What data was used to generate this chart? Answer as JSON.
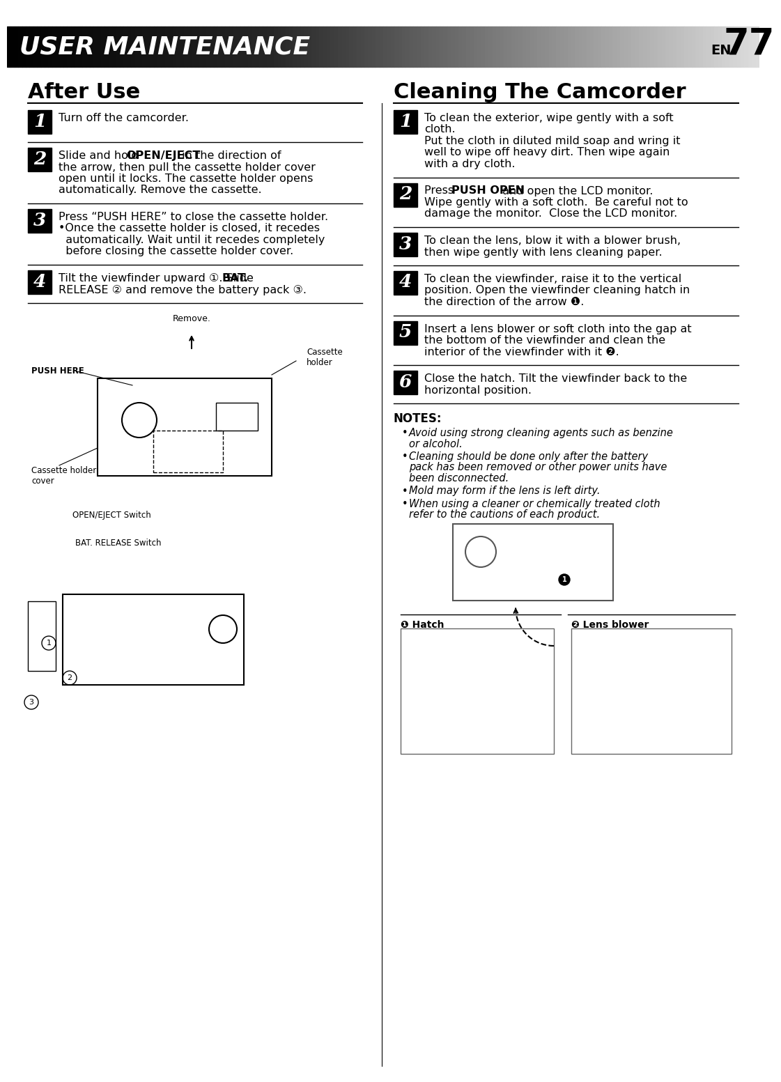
{
  "page_bg": "#ffffff",
  "header_gradient_left": "#111111",
  "header_gradient_right": "#cccccc",
  "header_text": "USER MAINTENANCE",
  "header_text_color": "#ffffff",
  "page_number": "77",
  "en_text": "EN",
  "left_title": "After Use",
  "right_title": "Cleaning The Camcorder",
  "left_steps": [
    {
      "num": "1",
      "text": "Turn off the camcorder."
    },
    {
      "num": "2",
      "text": "Slide and hold OPEN/EJECT in the direction of\nthe arrow, then pull the cassette holder cover\nopen until it locks. The cassette holder opens\nautomatically. Remove the cassette.",
      "bold_parts": [
        "OPEN/EJECT"
      ]
    },
    {
      "num": "3",
      "text": "Press “PUSH HERE” to close the cassette holder.\n•Once the cassette holder is closed, it recedes\n  automatically. Wait until it recedes completely\n  before closing the cassette holder cover."
    },
    {
      "num": "4",
      "text": "Tilt the viewfinder upward ①. Slide BAT.\nRELEASE ② and remove the battery pack ③.",
      "bold_parts": [
        "BAT.",
        "RELEASE"
      ]
    }
  ],
  "right_steps": [
    {
      "num": "1",
      "text": "To clean the exterior, wipe gently with a soft\ncloth.\nPut the cloth in diluted mild soap and wring it\nwell to wipe off heavy dirt. Then wipe again\nwith a dry cloth."
    },
    {
      "num": "2",
      "text": "Press PUSH OPEN and open the LCD monitor.\nWipe gently with a soft cloth.  Be careful not to\ndamage the monitor.  Close the LCD monitor.",
      "bold_parts": [
        "PUSH OPEN"
      ]
    },
    {
      "num": "3",
      "text": "To clean the lens, blow it with a blower brush,\nthen wipe gently with lens cleaning paper."
    },
    {
      "num": "4",
      "text": "To clean the viewfinder, raise it to the vertical\nposition. Open the viewfinder cleaning hatch in\nthe direction of the arrow ❶."
    },
    {
      "num": "5",
      "text": "Insert a lens blower or soft cloth into the gap at\nthe bottom of the viewfinder and clean the\ninterior of the viewfinder with it ❷."
    },
    {
      "num": "6",
      "text": "Close the hatch. Tilt the viewfinder back to the\nhorizontal position."
    }
  ],
  "notes_title": "NOTES:",
  "notes": [
    "Avoid using strong cleaning agents such as benzine\nor alcohol.",
    "Cleaning should be done only after the battery\npack has been removed or other power units have\nbeen disconnected.",
    "Mold may form if the lens is left dirty.",
    "When using a cleaner or chemically treated cloth\nrefer to the cautions of each product."
  ],
  "left_image_labels": [
    "Remove.",
    "PUSH HERE",
    "Cassette\nholder",
    "Cassette holder\ncover",
    "OPEN/EJECT Switch",
    "BAT. RELEASE Switch"
  ],
  "right_image_labels": [
    "❶ Hatch",
    "❷ Lens blower"
  ]
}
